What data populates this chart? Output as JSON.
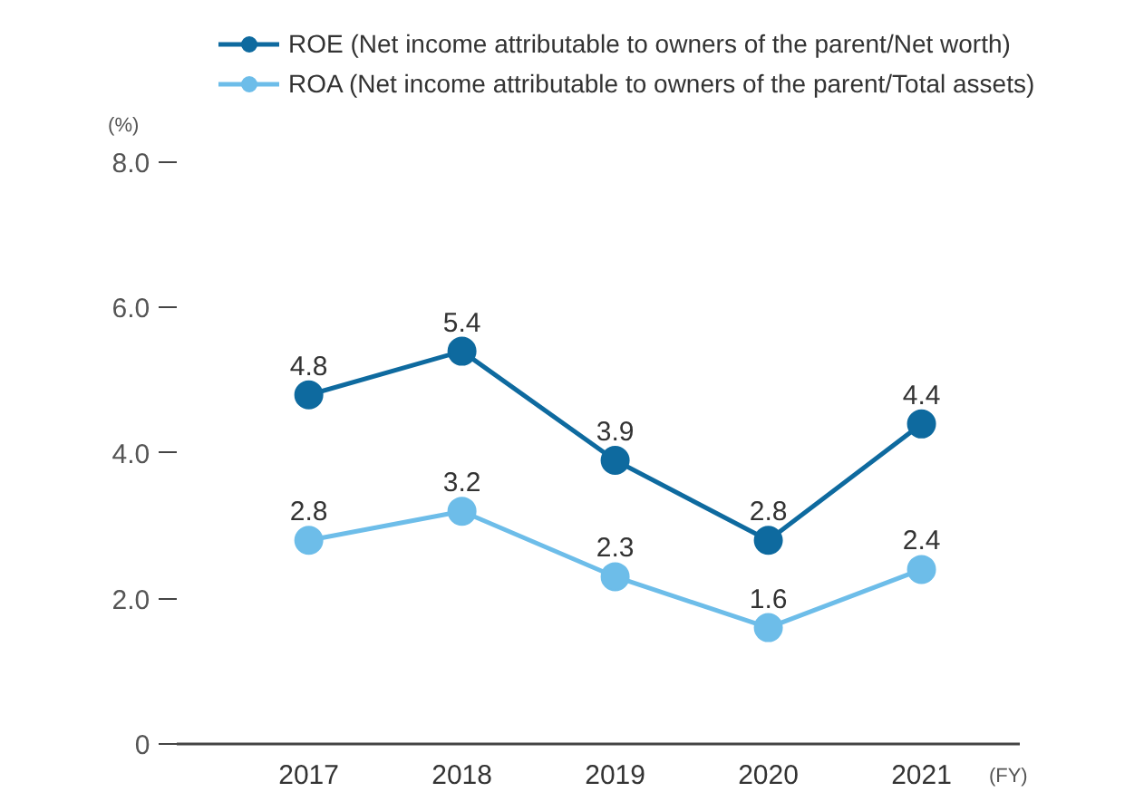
{
  "chart_data": {
    "type": "line",
    "categories": [
      "2017",
      "2018",
      "2019",
      "2020",
      "2021"
    ],
    "series": [
      {
        "name": "ROE (Net income attributable to owners of the parent/Net worth)",
        "color": "#0e6a9f",
        "values": [
          4.8,
          5.4,
          3.9,
          2.8,
          4.4
        ]
      },
      {
        "name": "ROA (Net income attributable to owners of the parent/Total assets)",
        "color": "#6dbde9",
        "values": [
          2.8,
          3.2,
          2.3,
          1.6,
          2.4
        ]
      }
    ],
    "ylabel": "(%)",
    "xlabel": "(FY)",
    "ylim": [
      0,
      8
    ],
    "yticks": [
      {
        "value": 0,
        "label": "0"
      },
      {
        "value": 2,
        "label": "2.0"
      },
      {
        "value": 4,
        "label": "4.0"
      },
      {
        "value": 6,
        "label": "6.0"
      },
      {
        "value": 8,
        "label": "8.0"
      }
    ],
    "data_labels": true,
    "marker": "circle",
    "legend": "top",
    "grid": false
  }
}
